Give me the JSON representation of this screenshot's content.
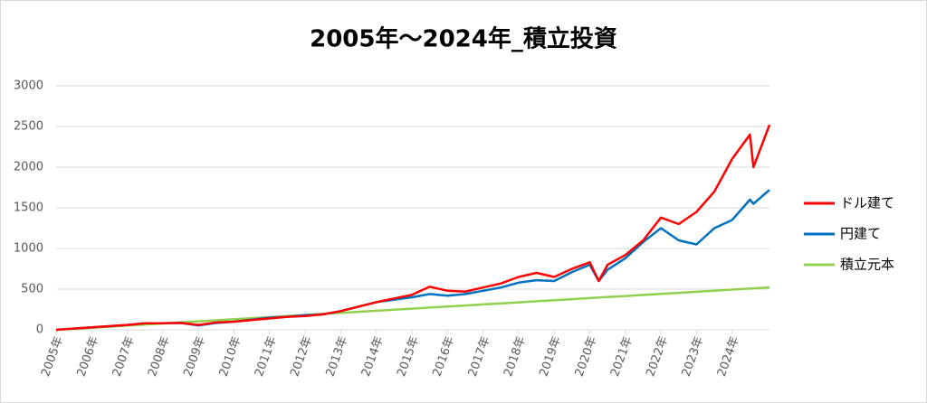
{
  "chart_data": {
    "type": "line",
    "title": "2005年～2024年_積立投資",
    "x": [
      2005,
      2006,
      2007,
      2007.5,
      2008,
      2008.5,
      2009,
      2009.5,
      2010,
      2011,
      2011.5,
      2012,
      2012.5,
      2013,
      2014,
      2015,
      2015.5,
      2016,
      2016.5,
      2017,
      2017.5,
      2018,
      2018.5,
      2019,
      2019.5,
      2020,
      2020.25,
      2020.5,
      2021,
      2021.5,
      2022,
      2022.5,
      2023,
      2023.5,
      2024,
      2024.5,
      2024.6,
      2025.05
    ],
    "series": [
      {
        "name": "ドル建て",
        "color": "#ff0000",
        "values": [
          0,
          30,
          60,
          80,
          80,
          85,
          60,
          90,
          100,
          140,
          160,
          170,
          190,
          230,
          340,
          430,
          530,
          480,
          470,
          520,
          570,
          650,
          700,
          650,
          750,
          830,
          600,
          800,
          920,
          1100,
          1380,
          1300,
          1450,
          1700,
          2100,
          2400,
          2000,
          2520
        ]
      },
      {
        "name": "円建て",
        "color": "#0070c0",
        "values": [
          0,
          30,
          60,
          80,
          80,
          85,
          55,
          85,
          100,
          150,
          160,
          180,
          190,
          230,
          340,
          400,
          440,
          420,
          440,
          480,
          520,
          580,
          610,
          600,
          710,
          800,
          600,
          740,
          880,
          1080,
          1250,
          1100,
          1050,
          1250,
          1350,
          1600,
          1550,
          1720
        ]
      },
      {
        "name": "積立元本",
        "color": "#92d050",
        "values": [
          0,
          26,
          52,
          65,
          78,
          91,
          104,
          117,
          130,
          156,
          169,
          182,
          195,
          208,
          234,
          260,
          273,
          286,
          299,
          312,
          325,
          338,
          351,
          364,
          377,
          390,
          397,
          403,
          416,
          429,
          442,
          455,
          468,
          481,
          494,
          507,
          510,
          521
        ]
      }
    ],
    "xlim": [
      2005,
      2025.05
    ],
    "xticks": [
      {
        "value": 2005,
        "label": "2005年"
      },
      {
        "value": 2006,
        "label": "2006年"
      },
      {
        "value": 2007,
        "label": "2007年"
      },
      {
        "value": 2008,
        "label": "2008年"
      },
      {
        "value": 2009,
        "label": "2009年"
      },
      {
        "value": 2010,
        "label": "2010年"
      },
      {
        "value": 2011,
        "label": "2011年"
      },
      {
        "value": 2012,
        "label": "2012年"
      },
      {
        "value": 2013,
        "label": "2013年"
      },
      {
        "value": 2014,
        "label": "2014年"
      },
      {
        "value": 2015,
        "label": "2015年"
      },
      {
        "value": 2016,
        "label": "2016年"
      },
      {
        "value": 2017,
        "label": "2017年"
      },
      {
        "value": 2018,
        "label": "2018年"
      },
      {
        "value": 2019,
        "label": "2019年"
      },
      {
        "value": 2020,
        "label": "2020年"
      },
      {
        "value": 2021,
        "label": "2021年"
      },
      {
        "value": 2022,
        "label": "2022年"
      },
      {
        "value": 2023,
        "label": "2023年"
      },
      {
        "value": 2024,
        "label": "2024年"
      }
    ],
    "ylim": [
      0,
      3000
    ],
    "yticks": [
      0,
      500,
      1000,
      1500,
      2000,
      2500,
      3000
    ],
    "grid": true,
    "legend": "right"
  }
}
